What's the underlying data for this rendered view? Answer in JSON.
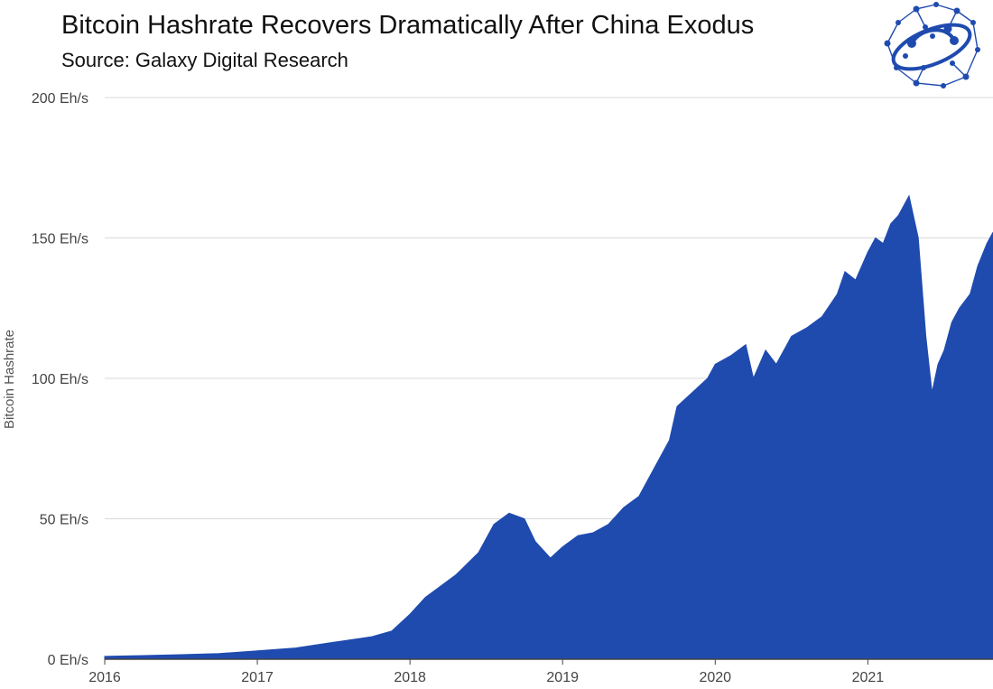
{
  "colors": {
    "area": "#1f4baf",
    "grid": "#d9d9d9",
    "axis": "#444444",
    "logo": "#1f4baf"
  },
  "logo": {
    "icon": "galaxy-network-orbit-icon"
  },
  "chart_data": {
    "type": "area",
    "title": "Bitcoin Hashrate Recovers Dramatically After China Exodus",
    "subtitle": "Source: Galaxy Digital Research",
    "xlabel": "",
    "ylabel": "Bitcoin Hashrate",
    "xlim": [
      2016.0,
      2021.82
    ],
    "ylim": [
      0,
      200
    ],
    "x_ticks": [
      {
        "value": 2016,
        "label": "2016"
      },
      {
        "value": 2017,
        "label": "2017"
      },
      {
        "value": 2018,
        "label": "2018"
      },
      {
        "value": 2019,
        "label": "2019"
      },
      {
        "value": 2020,
        "label": "2020"
      },
      {
        "value": 2021,
        "label": "2021"
      }
    ],
    "y_ticks": [
      {
        "value": 0,
        "label": "0 Eh/s"
      },
      {
        "value": 50,
        "label": "50 Eh/s"
      },
      {
        "value": 100,
        "label": "100 Eh/s"
      },
      {
        "value": 150,
        "label": "150 Eh/s"
      },
      {
        "value": 200,
        "label": "200 Eh/s"
      }
    ],
    "grid": true,
    "legend": "none",
    "series": [
      {
        "x": [
          2016.0,
          2016.25,
          2016.5,
          2016.75,
          2017.0,
          2017.25,
          2017.5,
          2017.75,
          2017.88,
          2018.0,
          2018.1,
          2018.2,
          2018.3,
          2018.45,
          2018.55,
          2018.65,
          2018.75,
          2018.82,
          2018.92,
          2019.0,
          2019.1,
          2019.2,
          2019.3,
          2019.4,
          2019.5,
          2019.6,
          2019.7,
          2019.75,
          2019.85,
          2019.95,
          2020.0,
          2020.1,
          2020.2,
          2020.25,
          2020.33,
          2020.4,
          2020.5,
          2020.6,
          2020.7,
          2020.8,
          2020.85,
          2020.92,
          2021.0,
          2021.05,
          2021.1,
          2021.15,
          2021.2,
          2021.27,
          2021.33,
          2021.38,
          2021.42,
          2021.46,
          2021.5,
          2021.55,
          2021.6,
          2021.67,
          2021.72,
          2021.78,
          2021.82
        ],
        "y": [
          1,
          1.3,
          1.6,
          2,
          3,
          4,
          6,
          8,
          10,
          16,
          22,
          26,
          30,
          38,
          48,
          52,
          50,
          42,
          36,
          40,
          44,
          45,
          48,
          54,
          58,
          68,
          78,
          90,
          95,
          100,
          105,
          108,
          112,
          100,
          110,
          105,
          115,
          118,
          122,
          130,
          138,
          135,
          145,
          150,
          148,
          155,
          158,
          165,
          150,
          115,
          95,
          105,
          110,
          120,
          125,
          130,
          140,
          148,
          152
        ]
      }
    ]
  }
}
